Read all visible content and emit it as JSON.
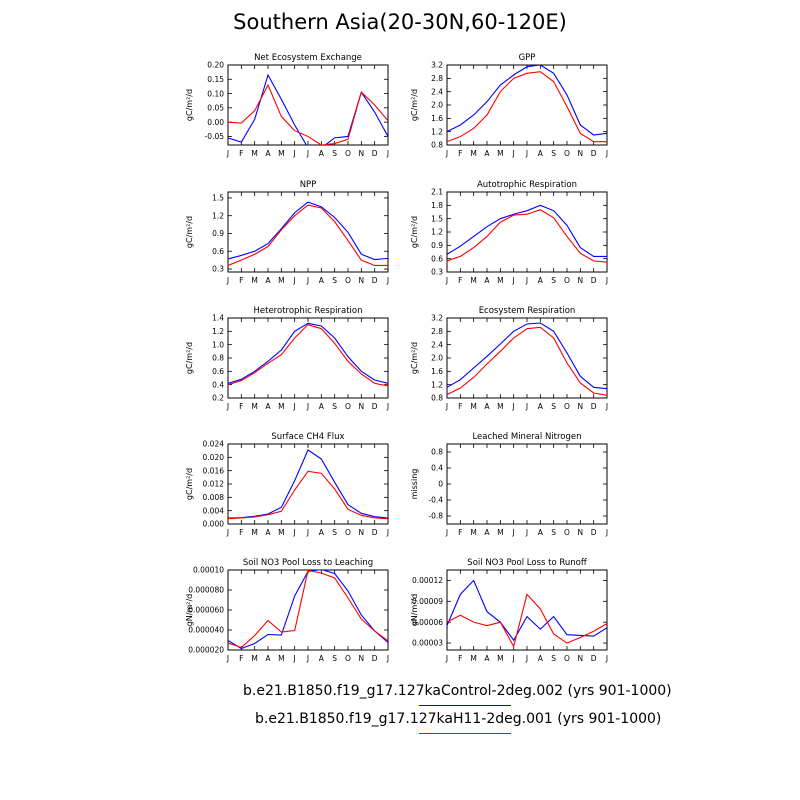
{
  "title": "Southern Asia(20-30N,60-120E)",
  "colors": {
    "control": "#0000ff",
    "h11": "#ff0000",
    "axis": "#000000"
  },
  "months": [
    "J",
    "F",
    "M",
    "A",
    "M",
    "J",
    "J",
    "A",
    "S",
    "O",
    "N",
    "D",
    "J"
  ],
  "legend": [
    {
      "label": "b.e21.B1850.f19_g17.127kaControl-2deg.002 (yrs 901-1000)",
      "color": "#0000ff"
    },
    {
      "label": "b.e21.B1850.f19_g17.127kaH11-2deg.001 (yrs 901-1000)",
      "color": "#ff0000"
    }
  ],
  "chart_data": [
    {
      "type": "line",
      "title": "Net Ecosystem Exchange",
      "ylabel": "gC/m^2/d",
      "ylim": [
        -0.08,
        0.2
      ],
      "yticks": [
        "-0.05",
        "0.00",
        "0.05",
        "0.10",
        "0.15",
        "0.20"
      ],
      "ytick_values": [
        -0.05,
        0,
        0.05,
        0.1,
        0.15,
        0.2
      ],
      "series": [
        {
          "color": "#0000ff",
          "values": [
            -0.055,
            -0.07,
            0.01,
            0.165,
            0.08,
            -0.01,
            -0.09,
            -0.09,
            -0.055,
            -0.05,
            0.105,
            0.035,
            -0.05
          ]
        },
        {
          "color": "#ff0000",
          "values": [
            0.0,
            -0.003,
            0.04,
            0.13,
            0.02,
            -0.03,
            -0.05,
            -0.08,
            -0.075,
            -0.06,
            0.105,
            0.06,
            0.005
          ]
        }
      ]
    },
    {
      "type": "line",
      "title": "GPP",
      "ylabel": "gC/m^2/d",
      "ylim": [
        0.8,
        3.2
      ],
      "yticks": [
        "0.8",
        "1.2",
        "1.6",
        "2.0",
        "2.4",
        "2.8",
        "3.2"
      ],
      "ytick_values": [
        0.8,
        1.2,
        1.6,
        2.0,
        2.4,
        2.8,
        3.2
      ],
      "series": [
        {
          "color": "#0000ff",
          "values": [
            1.2,
            1.4,
            1.7,
            2.1,
            2.6,
            2.9,
            3.15,
            3.2,
            2.95,
            2.3,
            1.4,
            1.1,
            1.15
          ]
        },
        {
          "color": "#ff0000",
          "values": [
            0.9,
            1.05,
            1.3,
            1.7,
            2.4,
            2.8,
            2.95,
            3.0,
            2.7,
            1.95,
            1.15,
            0.9,
            0.9
          ]
        }
      ]
    },
    {
      "type": "line",
      "title": "NPP",
      "ylabel": "gC/m^2/d",
      "ylim": [
        0.25,
        1.6
      ],
      "yticks": [
        "0.3",
        "0.6",
        "0.9",
        "1.2",
        "1.5"
      ],
      "ytick_values": [
        0.3,
        0.6,
        0.9,
        1.2,
        1.5
      ],
      "series": [
        {
          "color": "#0000ff",
          "values": [
            0.47,
            0.53,
            0.6,
            0.73,
            0.98,
            1.25,
            1.43,
            1.35,
            1.17,
            0.92,
            0.55,
            0.46,
            0.48
          ]
        },
        {
          "color": "#ff0000",
          "values": [
            0.36,
            0.45,
            0.55,
            0.68,
            0.96,
            1.2,
            1.38,
            1.33,
            1.1,
            0.78,
            0.45,
            0.36,
            0.36
          ]
        }
      ]
    },
    {
      "type": "line",
      "title": "Autotrophic Respiration",
      "ylabel": "gC/m^2/d",
      "ylim": [
        0.3,
        2.1
      ],
      "yticks": [
        "0.3",
        "0.6",
        "0.9",
        "1.2",
        "1.5",
        "1.8",
        "2.1"
      ],
      "ytick_values": [
        0.3,
        0.6,
        0.9,
        1.2,
        1.5,
        1.8,
        2.1
      ],
      "series": [
        {
          "color": "#0000ff",
          "values": [
            0.7,
            0.88,
            1.1,
            1.32,
            1.5,
            1.6,
            1.68,
            1.8,
            1.68,
            1.35,
            0.85,
            0.65,
            0.65
          ]
        },
        {
          "color": "#ff0000",
          "values": [
            0.55,
            0.65,
            0.85,
            1.1,
            1.42,
            1.58,
            1.6,
            1.7,
            1.52,
            1.1,
            0.72,
            0.55,
            0.52
          ]
        }
      ]
    },
    {
      "type": "line",
      "title": "Heterotrophic Respiration",
      "ylabel": "gC/m^2/d",
      "ylim": [
        0.2,
        1.4
      ],
      "yticks": [
        "0.2",
        "0.4",
        "0.6",
        "0.8",
        "1.0",
        "1.2",
        "1.4"
      ],
      "ytick_values": [
        0.2,
        0.4,
        0.6,
        0.8,
        1.0,
        1.2,
        1.4
      ],
      "series": [
        {
          "color": "#0000ff",
          "values": [
            0.42,
            0.48,
            0.6,
            0.75,
            0.92,
            1.2,
            1.32,
            1.28,
            1.1,
            0.82,
            0.6,
            0.47,
            0.42
          ]
        },
        {
          "color": "#ff0000",
          "values": [
            0.4,
            0.46,
            0.58,
            0.72,
            0.85,
            1.1,
            1.3,
            1.24,
            1.02,
            0.75,
            0.56,
            0.42,
            0.38
          ]
        }
      ]
    },
    {
      "type": "line",
      "title": "Ecosystem Respiration",
      "ylabel": "gC/m^2/d",
      "ylim": [
        0.8,
        3.2
      ],
      "yticks": [
        "0.8",
        "1.2",
        "1.6",
        "2.0",
        "2.4",
        "2.8",
        "3.2"
      ],
      "ytick_values": [
        0.8,
        1.2,
        1.6,
        2.0,
        2.4,
        2.8,
        3.2
      ],
      "series": [
        {
          "color": "#0000ff",
          "values": [
            1.12,
            1.35,
            1.7,
            2.05,
            2.42,
            2.8,
            3.02,
            3.05,
            2.8,
            2.15,
            1.45,
            1.12,
            1.08
          ]
        },
        {
          "color": "#ff0000",
          "values": [
            0.9,
            1.1,
            1.42,
            1.82,
            2.2,
            2.6,
            2.88,
            2.92,
            2.6,
            1.85,
            1.25,
            0.95,
            0.88
          ]
        }
      ]
    },
    {
      "type": "line",
      "title": "Surface CH4 Flux",
      "ylabel": "gC/m^2/d",
      "ylim": [
        0.0,
        0.024
      ],
      "yticks": [
        "0.000",
        "0.004",
        "0.008",
        "0.012",
        "0.016",
        "0.020",
        "0.024"
      ],
      "ytick_values": [
        0,
        0.004,
        0.008,
        0.012,
        0.016,
        0.02,
        0.024
      ],
      "series": [
        {
          "color": "#0000ff",
          "values": [
            0.0018,
            0.0019,
            0.0023,
            0.003,
            0.005,
            0.013,
            0.0222,
            0.0195,
            0.0125,
            0.0058,
            0.0032,
            0.0022,
            0.0018
          ]
        },
        {
          "color": "#ff0000",
          "values": [
            0.0016,
            0.0018,
            0.0021,
            0.0028,
            0.0038,
            0.0102,
            0.0158,
            0.0152,
            0.0105,
            0.0044,
            0.0026,
            0.0018,
            0.0016
          ]
        }
      ]
    },
    {
      "type": "line",
      "title": "Leached Mineral Nitrogen",
      "ylabel": "missing",
      "ylim": [
        -1.0,
        1.0
      ],
      "yticks": [
        "-0.8",
        "-0.4",
        "0",
        "0.4",
        "0.8"
      ],
      "ytick_values": [
        -0.8,
        -0.4,
        0,
        0.4,
        0.8
      ],
      "series": []
    },
    {
      "type": "line",
      "title": "Soil NO3 Pool Loss to Leaching",
      "ylabel": "gN/m^2/d",
      "ylim": [
        2e-05,
        0.0001
      ],
      "yticks": [
        "0.000020",
        "0.000040",
        "0.000060",
        "0.000080",
        "0.00010"
      ],
      "ytick_values": [
        2e-05,
        4e-05,
        6e-05,
        8e-05,
        0.0001
      ],
      "series": [
        {
          "color": "#0000ff",
          "values": [
            2.95e-05,
            2.15e-05,
            2.65e-05,
            3.55e-05,
            3.5e-05,
            7.4e-05,
            9.85e-05,
            0.0001005,
            9.65e-05,
            7.9e-05,
            5.5e-05,
            3.9e-05,
            2.75e-05
          ]
        },
        {
          "color": "#ff0000",
          "values": [
            2.7e-05,
            2.25e-05,
            3.45e-05,
            4.95e-05,
            3.8e-05,
            3.95e-05,
            9.95e-05,
            9.7e-05,
            9.2e-05,
            7.2e-05,
            5.1e-05,
            3.9e-05,
            2.9e-05
          ]
        }
      ]
    },
    {
      "type": "line",
      "title": "Soil NO3 Pool Loss to Runoff",
      "ylabel": "gN/m^2/d",
      "ylim": [
        2e-05,
        0.000135
      ],
      "yticks": [
        "0.00003",
        "0.00006",
        "0.00009",
        "0.00012"
      ],
      "ytick_values": [
        3e-05,
        6e-05,
        9e-05,
        0.00012
      ],
      "series": [
        {
          "color": "#0000ff",
          "values": [
            5.5e-05,
            0.0001,
            0.00012,
            7.5e-05,
            6e-05,
            3.4e-05,
            6.8e-05,
            5e-05,
            6.8e-05,
            4.2e-05,
            4.1e-05,
            4e-05,
            5.2e-05
          ]
        },
        {
          "color": "#ff0000",
          "values": [
            6e-05,
            7e-05,
            6e-05,
            5.5e-05,
            6e-05,
            2.5e-05,
            0.0001,
            7.9e-05,
            4.3e-05,
            3e-05,
            3.8e-05,
            4.7e-05,
            5.8e-05
          ]
        }
      ]
    }
  ]
}
